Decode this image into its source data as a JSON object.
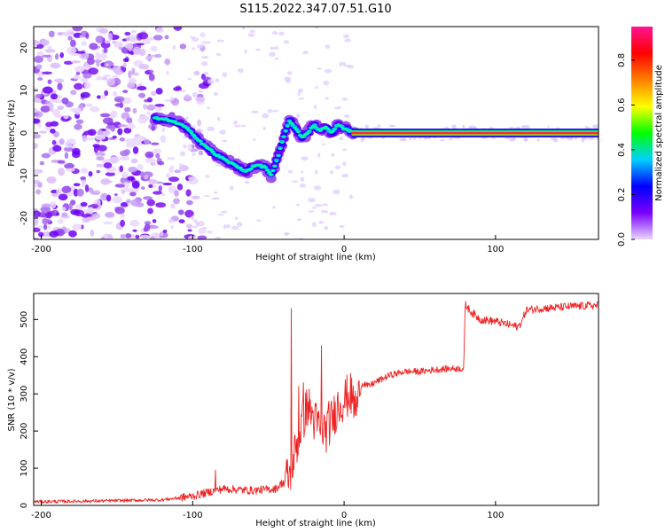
{
  "title": "S115.2022.347.07.51.G10",
  "chart_data": [
    {
      "type": "heatmap",
      "xlabel": "Height of straight line (km)",
      "ylabel": "Frequency (Hz)",
      "xlim": [
        -205,
        168
      ],
      "ylim": [
        -25,
        25
      ],
      "xticks": [
        -200,
        -100,
        0,
        100
      ],
      "yticks": [
        -20,
        -10,
        0,
        10,
        20
      ],
      "colorbar": {
        "label": "Normalized spectral amplitude",
        "range": [
          0,
          0.95
        ],
        "ticks": [
          0.0,
          0.2,
          0.4,
          0.6,
          0.8
        ],
        "colors": [
          "#e9d5ff",
          "#7a00ff",
          "#0000ff",
          "#00d0ff",
          "#00ff00",
          "#ffff00",
          "#ff7f00",
          "#ff0000",
          "#ff1493"
        ]
      },
      "ridge": {
        "x": [
          -125,
          -115,
          -105,
          -95,
          -85,
          -75,
          -65,
          -58,
          -52,
          -48,
          -44,
          -40,
          -36,
          -32,
          -28,
          -24,
          -20,
          -16,
          -12,
          -8,
          -4,
          0,
          4,
          8
        ],
        "y": [
          3.5,
          3,
          1.5,
          -2,
          -5,
          -7,
          -9,
          -7.5,
          -8,
          -10,
          -6,
          -1,
          3,
          1,
          -1,
          0,
          2,
          0.5,
          1.5,
          0,
          2,
          1,
          0.5,
          0
        ]
      },
      "carrier": {
        "x_start": 5,
        "x_end": 168,
        "frequency": 0
      },
      "noise_region": {
        "x_start": -205,
        "x_end": -120
      }
    },
    {
      "type": "line",
      "xlabel": "Height of straight line (km)",
      "ylabel": "SNR (10 * v/v)",
      "xlim": [
        -205,
        168
      ],
      "ylim": [
        0,
        570
      ],
      "xticks": [
        -200,
        -100,
        0,
        100
      ],
      "yticks": [
        0,
        100,
        200,
        300,
        400,
        500
      ],
      "color": "#ee2222",
      "profile": {
        "x": [
          -205,
          -160,
          -120,
          -100,
          -80,
          -60,
          -45,
          -36,
          -32,
          -28,
          -24,
          -20,
          -16,
          -12,
          -8,
          -4,
          0,
          4,
          8,
          12,
          16,
          20,
          25,
          30,
          35,
          40,
          50,
          60,
          70,
          79,
          80,
          84,
          90,
          100,
          110,
          115,
          118,
          120,
          130,
          140,
          150,
          160,
          168
        ],
        "y": [
          10,
          12,
          15,
          25,
          45,
          40,
          45,
          80,
          150,
          220,
          270,
          230,
          210,
          200,
          230,
          270,
          285,
          300,
          260,
          330,
          320,
          330,
          340,
          350,
          355,
          360,
          360,
          365,
          368,
          368,
          540,
          520,
          500,
          495,
          485,
          480,
          500,
          525,
          530,
          532,
          535,
          537,
          538
        ]
      },
      "spikes": [
        {
          "x": -35,
          "y": 530
        },
        {
          "x": -30,
          "y": 320
        },
        {
          "x": -27,
          "y": 330
        },
        {
          "x": -15,
          "y": 430
        },
        {
          "x": -10,
          "y": 280
        },
        {
          "x": -85,
          "y": 95
        }
      ]
    }
  ]
}
